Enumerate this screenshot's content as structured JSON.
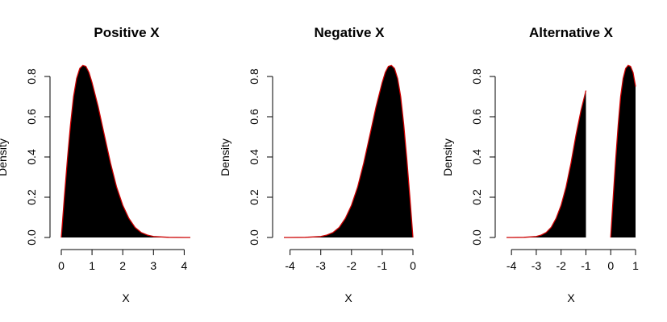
{
  "chart_data": [
    {
      "type": "area",
      "title": "Positive X",
      "xlabel": "X",
      "ylabel": "Density",
      "xlim": [
        0,
        4.2
      ],
      "ylim": [
        0,
        0.86
      ],
      "xticks": [
        "0",
        "1",
        "2",
        "3",
        "4"
      ],
      "yticks": [
        "0.0",
        "0.2",
        "0.4",
        "0.6",
        "0.8"
      ],
      "fill_color": "#000000",
      "curve_color": "#cc0000",
      "grid": false,
      "series": [
        {
          "x": [
            0,
            0.1,
            0.2,
            0.3,
            0.4,
            0.5,
            0.6,
            0.7,
            0.8,
            0.9,
            1.0,
            1.2,
            1.4,
            1.6,
            1.8,
            2.0,
            2.2,
            2.4,
            2.6,
            2.8,
            3.0,
            3.5,
            4.0,
            4.2
          ],
          "y": [
            0,
            0.2,
            0.39,
            0.56,
            0.7,
            0.79,
            0.84,
            0.855,
            0.85,
            0.82,
            0.77,
            0.65,
            0.51,
            0.37,
            0.25,
            0.16,
            0.095,
            0.05,
            0.025,
            0.012,
            0.005,
            0.001,
            0,
            0
          ]
        }
      ]
    },
    {
      "type": "area",
      "title": "Negative X",
      "xlabel": "X",
      "ylabel": "Density",
      "xlim": [
        -4.2,
        0
      ],
      "ylim": [
        0,
        0.86
      ],
      "xticks": [
        "-4",
        "-3",
        "-2",
        "-1",
        "0"
      ],
      "yticks": [
        "0.0",
        "0.2",
        "0.4",
        "0.6",
        "0.8"
      ],
      "fill_color": "#000000",
      "curve_color": "#cc0000",
      "grid": false,
      "series": [
        {
          "x": [
            -4.2,
            -4.0,
            -3.5,
            -3.0,
            -2.8,
            -2.6,
            -2.4,
            -2.2,
            -2.0,
            -1.8,
            -1.6,
            -1.4,
            -1.2,
            -1.0,
            -0.9,
            -0.8,
            -0.7,
            -0.6,
            -0.5,
            -0.4,
            -0.3,
            -0.2,
            -0.1,
            0
          ],
          "y": [
            0,
            0,
            0.001,
            0.005,
            0.012,
            0.025,
            0.05,
            0.095,
            0.16,
            0.25,
            0.37,
            0.51,
            0.65,
            0.77,
            0.82,
            0.85,
            0.855,
            0.84,
            0.79,
            0.7,
            0.56,
            0.39,
            0.2,
            0
          ]
        }
      ]
    },
    {
      "type": "area",
      "title": "Alternative X",
      "xlabel": "X",
      "ylabel": "Density",
      "xlim": [
        -4.2,
        1
      ],
      "ylim": [
        0,
        0.86
      ],
      "xticks": [
        "-4",
        "-3",
        "-2",
        "-1",
        "0",
        "1"
      ],
      "yticks": [
        "0.0",
        "0.2",
        "0.4",
        "0.6",
        "0.8"
      ],
      "fill_color": "#000000",
      "curve_color": "#cc0000",
      "grid": false,
      "series": [
        {
          "x": [
            -4.2,
            -4.0,
            -3.5,
            -3.0,
            -2.8,
            -2.6,
            -2.4,
            -2.2,
            -2.0,
            -1.8,
            -1.6,
            -1.4,
            -1.2,
            -1.0
          ],
          "y": [
            0,
            0,
            0.001,
            0.005,
            0.012,
            0.025,
            0.05,
            0.095,
            0.16,
            0.25,
            0.37,
            0.51,
            0.63,
            0.73
          ]
        },
        {
          "x": [
            0,
            0.1,
            0.2,
            0.3,
            0.4,
            0.5,
            0.6,
            0.7,
            0.8,
            0.9,
            1.0
          ],
          "y": [
            0,
            0.2,
            0.39,
            0.56,
            0.7,
            0.79,
            0.84,
            0.855,
            0.85,
            0.82,
            0.75
          ]
        }
      ]
    }
  ]
}
